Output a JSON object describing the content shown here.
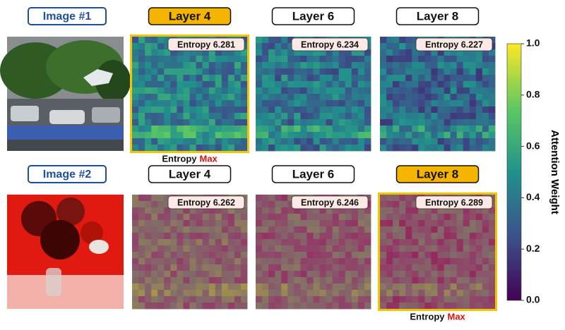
{
  "rows": [
    {
      "image_label": "Image #1",
      "layers": [
        {
          "label": "Layer 4",
          "entropy": "Entropy 6.281",
          "highlight": true
        },
        {
          "label": "Layer 6",
          "entropy": "Entropy 6.234",
          "highlight": false
        },
        {
          "label": "Layer 8",
          "entropy": "Entropy 6.227",
          "highlight": false
        }
      ],
      "max_note": {
        "prefix": "Entropy",
        "emphasis": "Max"
      }
    },
    {
      "image_label": "Image #2",
      "layers": [
        {
          "label": "Layer 4",
          "entropy": "Entropy 6.262",
          "highlight": false
        },
        {
          "label": "Layer 6",
          "entropy": "Entropy 6.246",
          "highlight": false
        },
        {
          "label": "Layer 8",
          "entropy": "Entropy 6.289",
          "highlight": true
        }
      ],
      "max_note": {
        "prefix": "Entropy",
        "emphasis": "Max"
      }
    }
  ],
  "colorbar": {
    "label": "Attention Weight",
    "range": [
      0,
      1
    ],
    "ticks": [
      {
        "value": 0,
        "label": "0.0"
      },
      {
        "value": 0.2,
        "label": "0.2"
      },
      {
        "value": 0.4,
        "label": "0.4"
      },
      {
        "value": 0.6,
        "label": "0.6"
      },
      {
        "value": 0.8,
        "label": "0.8"
      },
      {
        "value": 1,
        "label": "1.0"
      }
    ]
  }
}
